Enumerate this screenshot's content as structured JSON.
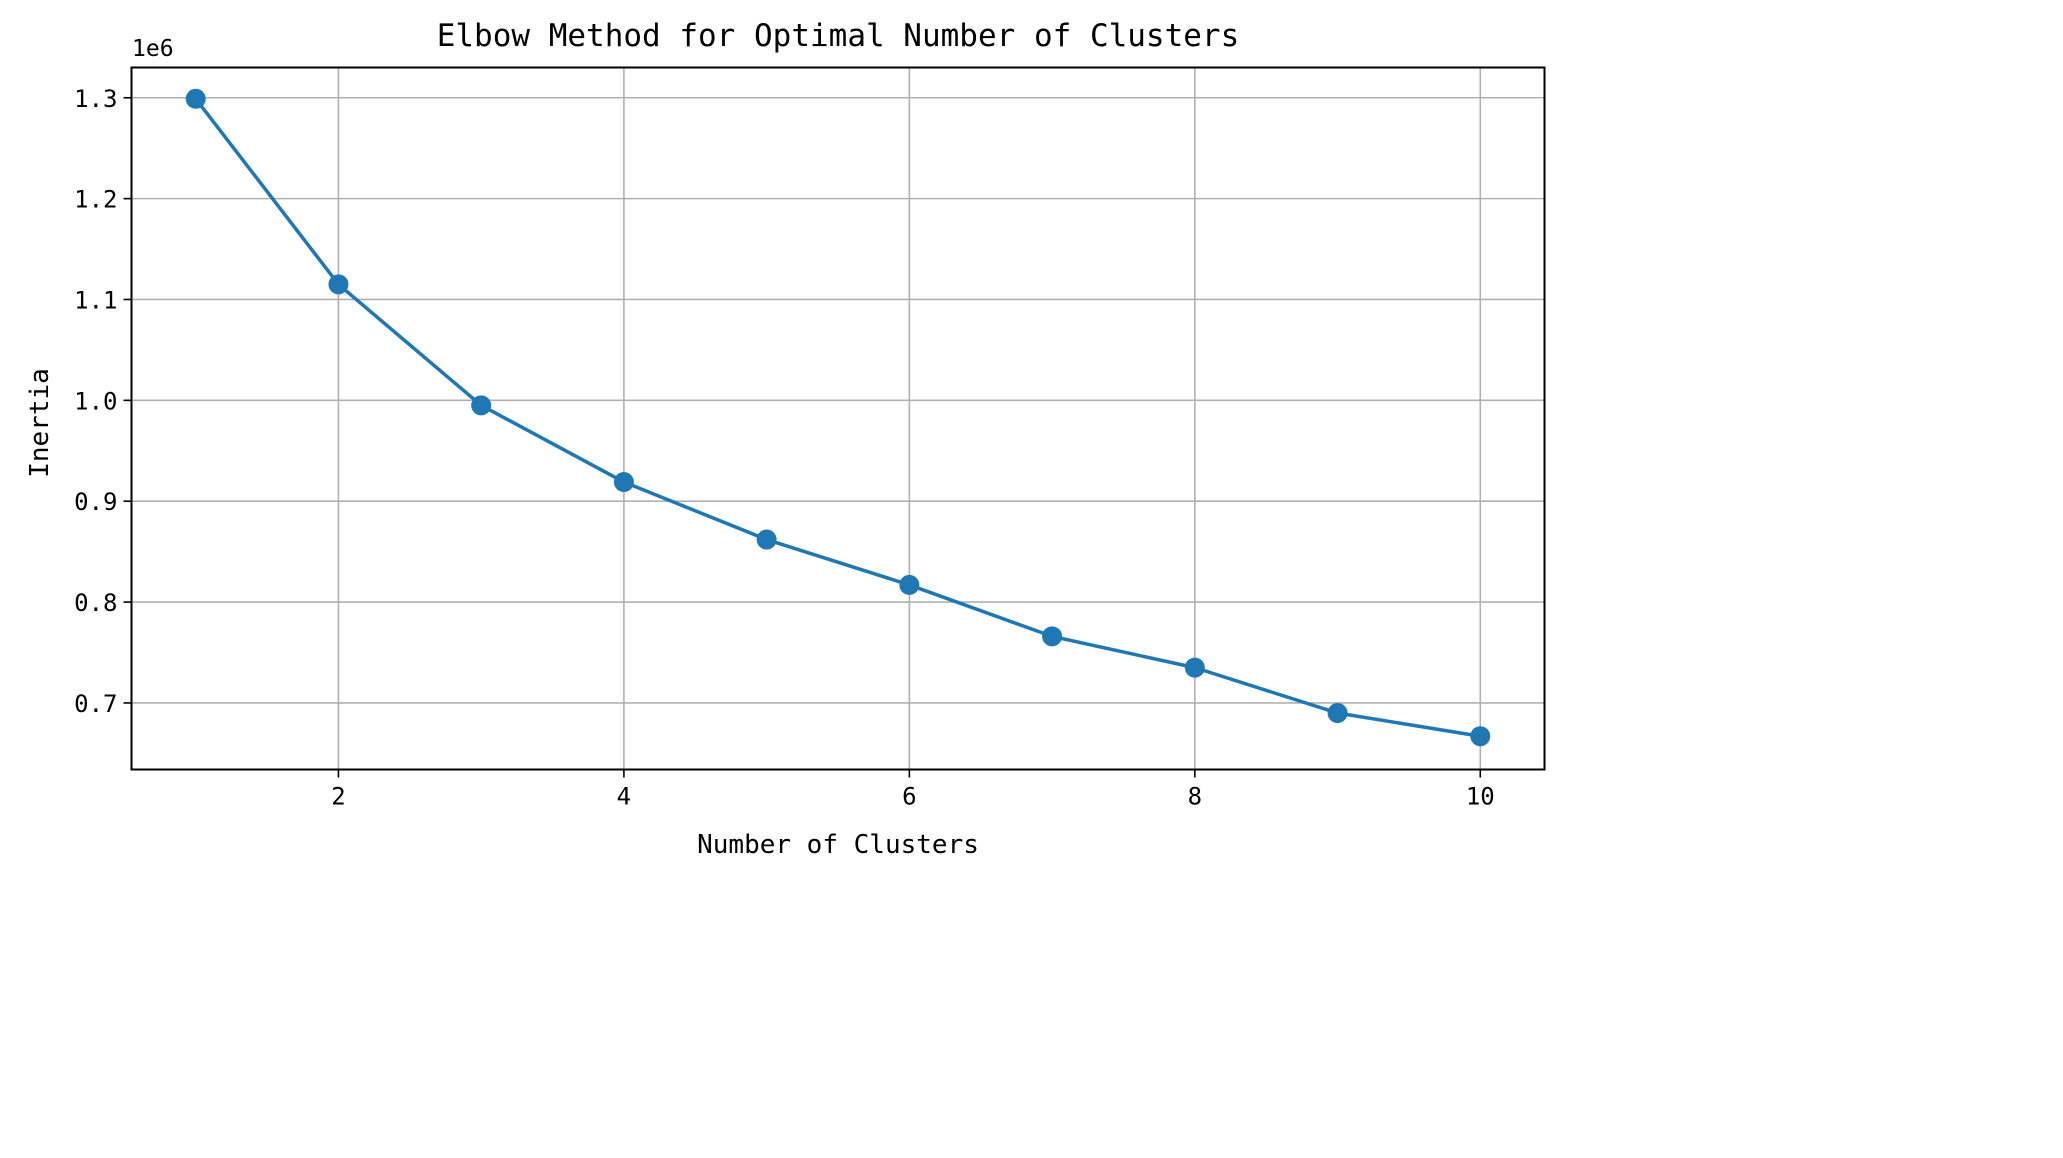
{
  "chart_data": {
    "type": "line",
    "title": "Elbow Method for Optimal Number of Clusters",
    "xlabel": "Number of Clusters",
    "ylabel": "Inertia",
    "y_offset_label": "1e6",
    "x": [
      1,
      2,
      3,
      4,
      5,
      6,
      7,
      8,
      9,
      10
    ],
    "series": [
      {
        "values": [
          1.299,
          1.115,
          0.995,
          0.919,
          0.862,
          0.817,
          0.766,
          0.735,
          0.69,
          0.667
        ],
        "color": "#1f77b4",
        "marker": "circle"
      }
    ],
    "xlim": [
      0.55,
      10.45
    ],
    "ylim": [
      0.634,
      1.33
    ],
    "xticks": [
      2,
      4,
      6,
      8,
      10
    ],
    "xtick_labels": [
      "2",
      "4",
      "6",
      "8",
      "10"
    ],
    "yticks": [
      0.7,
      0.8,
      0.9,
      1.0,
      1.1,
      1.2,
      1.3
    ],
    "ytick_labels": [
      "0.7",
      "0.8",
      "0.9",
      "1.0",
      "1.1",
      "1.2",
      "1.3"
    ],
    "grid": true,
    "legend": false
  }
}
